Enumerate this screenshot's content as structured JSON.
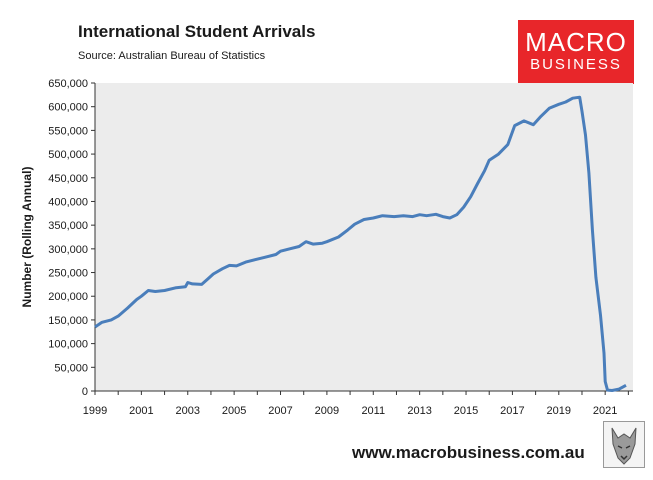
{
  "chart_data": {
    "type": "line",
    "title": "International Student Arrivals",
    "subtitle": "Source: Australian Bureau of Statistics",
    "ylabel": "Number (Rolling Annual)",
    "xlabel": "",
    "xlim": [
      1999,
      2022.2
    ],
    "ylim": [
      0,
      650000
    ],
    "yticks": [
      0,
      50000,
      100000,
      150000,
      200000,
      250000,
      300000,
      350000,
      400000,
      450000,
      500000,
      550000,
      600000,
      650000
    ],
    "ytick_labels": [
      "0",
      "50,000",
      "100,000",
      "150,000",
      "200,000",
      "250,000",
      "300,000",
      "350,000",
      "400,000",
      "450,000",
      "500,000",
      "550,000",
      "600,000",
      "650,000"
    ],
    "xticks": [
      1999,
      2001,
      2003,
      2005,
      2007,
      2009,
      2011,
      2013,
      2015,
      2017,
      2019,
      2021
    ],
    "xtick_labels": [
      "1999",
      "2001",
      "2003",
      "2005",
      "2007",
      "2009",
      "2011",
      "2013",
      "2015",
      "2017",
      "2019",
      "2021"
    ],
    "grid": false,
    "legend": "none",
    "series": [
      {
        "color": "#4a7ebb",
        "x": [
          1999.0,
          1999.3,
          1999.7,
          2000.0,
          2000.4,
          2000.8,
          2001.0,
          2001.3,
          2001.6,
          2002.0,
          2002.5,
          2002.9,
          2003.0,
          2003.2,
          2003.6,
          2003.9,
          2004.1,
          2004.5,
          2004.8,
          2005.1,
          2005.5,
          2005.9,
          2006.3,
          2006.8,
          2007.0,
          2007.4,
          2007.8,
          2008.1,
          2008.4,
          2008.8,
          2009.0,
          2009.5,
          2009.9,
          2010.2,
          2010.6,
          2011.0,
          2011.4,
          2011.9,
          2012.3,
          2012.7,
          2013.0,
          2013.3,
          2013.7,
          2014.0,
          2014.3,
          2014.6,
          2014.9,
          2015.2,
          2015.5,
          2015.8,
          2016.0,
          2016.4,
          2016.8,
          2017.1,
          2017.5,
          2017.9,
          2018.2,
          2018.6,
          2019.0,
          2019.3,
          2019.6,
          2019.9,
          2020.0,
          2020.15,
          2020.3,
          2020.45,
          2020.6,
          2020.8,
          2020.95,
          2021.0,
          2021.1,
          2021.3,
          2021.6,
          2021.9
        ],
        "values": [
          135000,
          145000,
          150000,
          158000,
          175000,
          193000,
          200000,
          212000,
          210000,
          212000,
          218000,
          220000,
          229000,
          226000,
          225000,
          238000,
          247000,
          258000,
          265000,
          264000,
          272000,
          277000,
          282000,
          288000,
          295000,
          300000,
          305000,
          315000,
          310000,
          312000,
          315000,
          325000,
          340000,
          352000,
          362000,
          365000,
          370000,
          368000,
          370000,
          368000,
          372000,
          370000,
          373000,
          368000,
          365000,
          372000,
          388000,
          410000,
          438000,
          465000,
          487000,
          500000,
          520000,
          560000,
          570000,
          562000,
          578000,
          597000,
          605000,
          610000,
          618000,
          620000,
          590000,
          540000,
          460000,
          340000,
          240000,
          160000,
          80000,
          20000,
          2000,
          1000,
          4000,
          12000
        ]
      }
    ]
  },
  "logo": {
    "line1": "MACRO",
    "line2": "BUSINESS"
  },
  "website": "www.macrobusiness.com.au"
}
